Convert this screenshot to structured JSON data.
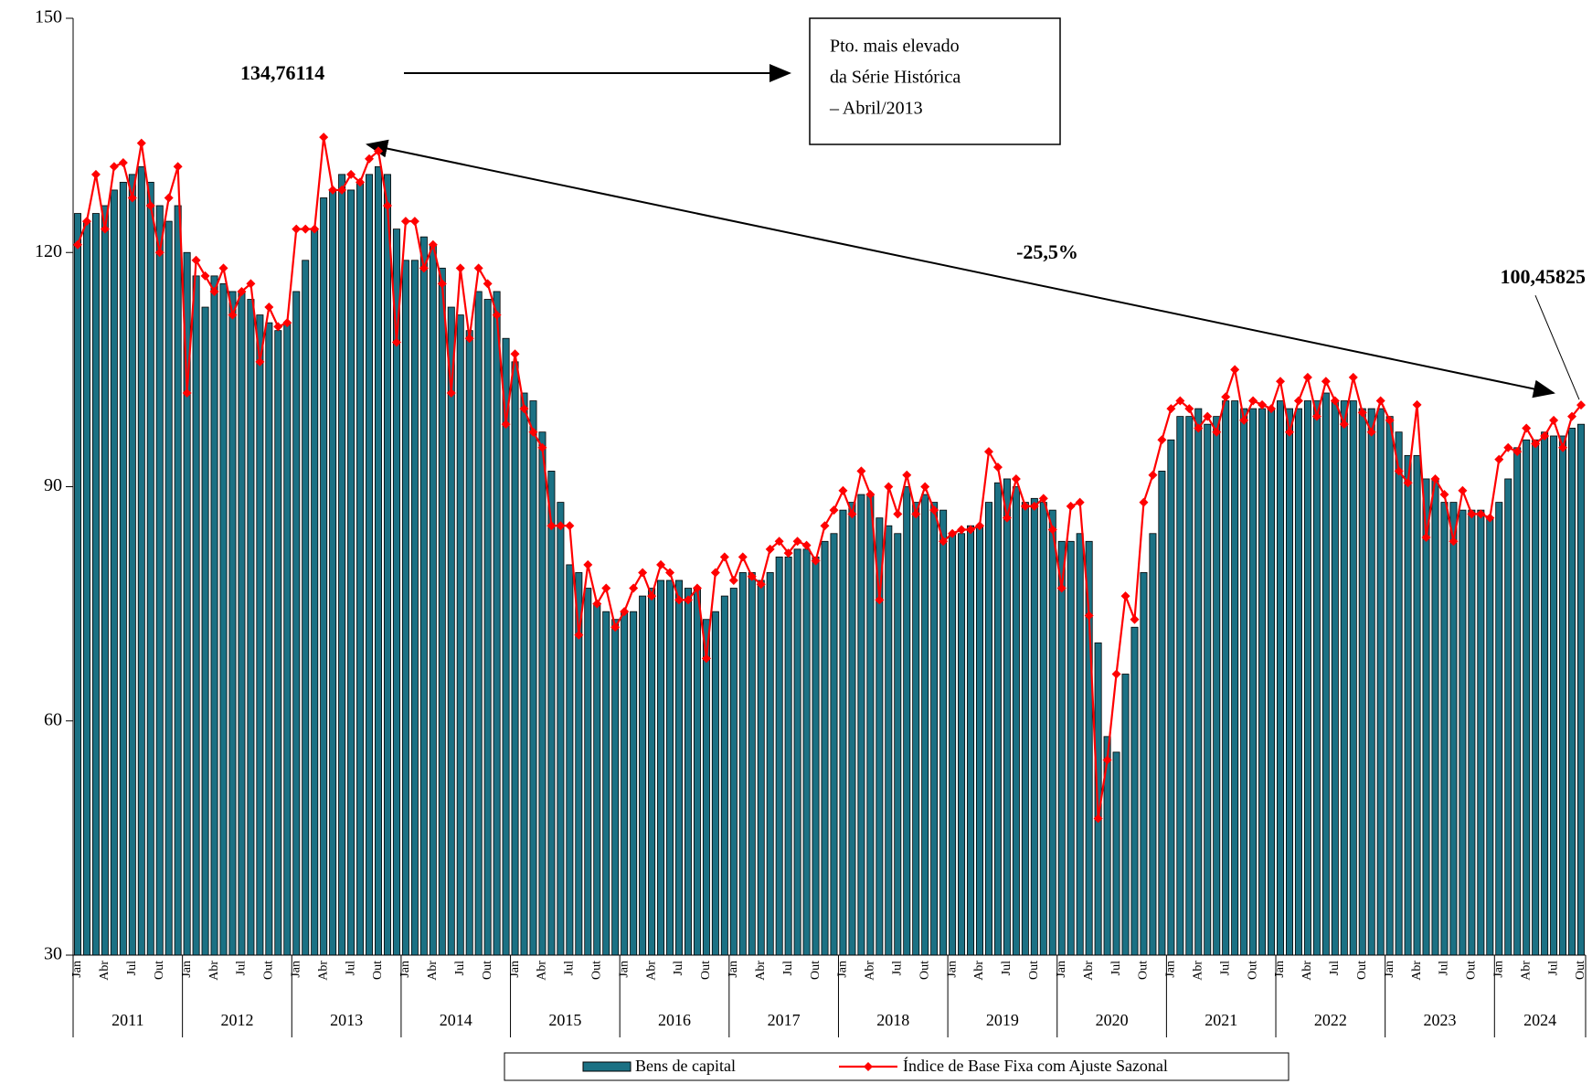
{
  "chart_data": {
    "type": "bar-line",
    "categories": [
      "Jan",
      null,
      null,
      "Abr",
      null,
      null,
      "Jul",
      null,
      null,
      "Out",
      null,
      null,
      "Jan",
      null,
      null,
      "Abr",
      null,
      null,
      "Jul",
      null,
      null,
      "Out",
      null,
      null,
      "Jan",
      null,
      null,
      "Abr",
      null,
      null,
      "Jul",
      null,
      null,
      "Out",
      null,
      null,
      "Jan",
      null,
      null,
      "Abr",
      null,
      null,
      "Jul",
      null,
      null,
      "Out",
      null,
      null,
      "Jan",
      null,
      null,
      "Abr",
      null,
      null,
      "Jul",
      null,
      null,
      "Out",
      null,
      null,
      "Jan",
      null,
      null,
      "Abr",
      null,
      null,
      "Jul",
      null,
      null,
      "Out",
      null,
      null,
      "Jan",
      null,
      null,
      "Abr",
      null,
      null,
      "Jul",
      null,
      null,
      "Out",
      null,
      null,
      "Jan",
      null,
      null,
      "Abr",
      null,
      null,
      "Jul",
      null,
      null,
      "Out",
      null,
      null,
      "Jan",
      null,
      null,
      "Abr",
      null,
      null,
      "Jul",
      null,
      null,
      "Out",
      null,
      null,
      "Jan",
      null,
      null,
      "Abr",
      null,
      null,
      "Jul",
      null,
      null,
      "Out",
      null,
      null,
      "Jan",
      null,
      null,
      "Abr",
      null,
      null,
      "Jul",
      null,
      null,
      "Out",
      null,
      null,
      "Jan",
      null,
      null,
      "Abr",
      null,
      null,
      "Jul",
      null,
      null,
      "Out",
      null,
      null,
      "Jan",
      null,
      null,
      "Abr",
      null,
      null,
      "Jul",
      null,
      null,
      "Out",
      null,
      null,
      "Jan",
      null,
      null,
      "Abr",
      null,
      null,
      "Jul",
      null,
      null,
      "Out"
    ],
    "years": [
      "2011",
      "2012",
      "2013",
      "2014",
      "2015",
      "2016",
      "2017",
      "2018",
      "2019",
      "2020",
      "2021",
      "2022",
      "2023",
      "2024"
    ],
    "series": [
      {
        "name": "Bens de capital",
        "color": "#1b7184",
        "values": [
          125,
          124,
          125,
          126,
          128,
          129,
          130,
          131,
          129,
          126,
          124,
          126,
          120,
          117,
          113,
          117,
          116,
          115,
          115,
          114,
          112,
          111,
          110,
          111,
          115,
          119,
          123,
          127,
          128,
          130,
          128,
          129,
          130,
          131,
          130,
          123,
          119,
          119,
          122,
          121,
          118,
          113,
          112,
          110,
          115,
          114,
          115,
          109,
          106,
          102,
          101,
          97,
          92,
          88,
          80,
          79,
          77,
          75,
          74,
          73,
          74,
          74,
          76,
          77,
          78,
          78,
          78,
          77,
          77,
          73,
          74,
          76,
          77,
          79,
          79,
          78,
          79,
          81,
          81,
          82,
          82,
          81,
          83,
          84,
          87,
          88,
          89,
          89,
          86,
          85,
          84,
          90,
          88,
          89,
          88,
          87,
          84,
          84,
          85,
          85,
          88,
          90.5,
          91,
          90,
          88,
          88.5,
          88,
          87,
          83,
          83,
          84,
          83,
          70,
          58,
          56,
          66,
          72,
          79,
          84,
          92,
          96,
          99,
          99,
          100,
          98,
          99,
          101,
          101,
          100,
          100,
          100,
          100,
          101,
          100,
          100,
          101,
          101,
          102,
          101,
          101,
          101,
          100,
          100,
          100,
          99,
          97,
          94,
          94,
          91,
          91,
          88,
          88,
          87,
          87,
          87,
          86,
          88,
          91,
          95,
          96,
          96,
          97,
          96.5,
          96.5,
          97.5,
          98
        ]
      },
      {
        "name": "Índice de Base Fixa com Ajuste Sazonal",
        "color": "#ff0000",
        "values": [
          121,
          124,
          130,
          123,
          131,
          131.5,
          127,
          134,
          126,
          120,
          127,
          131,
          102,
          119,
          117,
          115,
          118,
          112,
          115,
          116,
          106,
          113,
          110.5,
          111,
          123,
          123,
          123,
          134.76114,
          128,
          128,
          130,
          129,
          132,
          133,
          126,
          108.5,
          124,
          124,
          118,
          121,
          116,
          102,
          118,
          109,
          118,
          116,
          112,
          98,
          107,
          100,
          97,
          95,
          85,
          85,
          85,
          71,
          80,
          75,
          77,
          72,
          74,
          77,
          79,
          76,
          80,
          79,
          75.5,
          75.5,
          77,
          68,
          79,
          81,
          78,
          81,
          78.5,
          77.5,
          82,
          83,
          81.5,
          83,
          82.5,
          80.5,
          85,
          87,
          89.5,
          86.5,
          92,
          89,
          75.5,
          90,
          86.5,
          91.5,
          86.5,
          90,
          87,
          83,
          84,
          84.5,
          84.5,
          85,
          94.5,
          92.5,
          86,
          91,
          87.5,
          87.5,
          88.5,
          84.5,
          77,
          87.5,
          88,
          73.5,
          47.5,
          55,
          66,
          76,
          73,
          88,
          91.5,
          96,
          100,
          101,
          100,
          97.5,
          99,
          97,
          101.5,
          105,
          98.5,
          101,
          100.5,
          100,
          103.5,
          97,
          101,
          104,
          99,
          103.5,
          101,
          98,
          104,
          99.5,
          97,
          101,
          98.5,
          92,
          90.5,
          100.5,
          83.5,
          91,
          89,
          83,
          89.5,
          86.5,
          86.5,
          86,
          93.5,
          95,
          94.5,
          97.5,
          95.5,
          96.5,
          98.5,
          95,
          99,
          100.45825
        ],
        "value_labels": [
          null,
          null,
          null,
          null,
          null,
          null,
          null,
          null,
          null,
          null,
          null,
          null,
          null,
          null,
          null,
          null,
          null,
          null,
          null,
          null,
          null,
          null,
          null,
          null,
          null,
          null,
          null,
          "134,76114",
          null,
          null,
          null,
          null,
          null,
          null,
          null,
          null,
          null,
          null,
          null,
          null,
          null,
          null,
          null,
          null,
          null,
          null,
          null,
          null,
          null,
          null,
          null,
          null,
          null,
          null,
          null,
          null,
          null,
          null,
          null,
          null,
          null,
          null,
          null,
          null,
          null,
          null,
          null,
          null,
          null,
          null,
          null,
          null,
          null,
          null,
          null,
          null,
          null,
          null,
          null,
          null,
          null,
          null,
          null,
          null,
          null,
          null,
          null,
          null,
          null,
          null,
          null,
          null,
          null,
          null,
          null,
          null,
          null,
          null,
          null,
          null,
          null,
          null,
          null,
          null,
          null,
          null,
          null,
          null,
          null,
          null,
          null,
          null,
          null,
          null,
          null,
          null,
          null,
          null,
          null,
          null,
          null,
          null,
          null,
          null,
          null,
          null,
          null,
          null,
          null,
          null,
          null,
          null,
          null,
          null,
          null,
          null,
          null,
          null,
          null,
          null,
          null,
          null,
          null,
          null,
          null,
          null,
          null,
          null,
          null,
          null,
          null,
          null,
          null,
          null,
          null,
          null,
          null,
          null,
          null,
          null,
          null,
          null,
          null,
          null,
          null,
          "100,45825"
        ]
      }
    ],
    "ylim": [
      30,
      150
    ],
    "yticks": [
      30,
      60,
      90,
      120,
      150
    ],
    "annotations": {
      "change": "-25,5%",
      "box": [
        "Pto. mais elevado",
        "da Série Histórica",
        "– Abril/2013"
      ]
    }
  }
}
